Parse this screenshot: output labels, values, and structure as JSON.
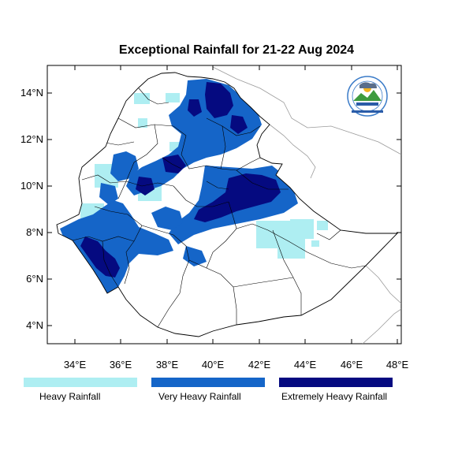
{
  "title": "Exceptional Rainfall for 21-22 Aug 2024",
  "axes": {
    "lat_ticks": [
      "4°N",
      "6°N",
      "8°N",
      "10°N",
      "12°N",
      "14°N"
    ],
    "lon_ticks": [
      "34°E",
      "36°E",
      "38°E",
      "40°E",
      "42°E",
      "44°E",
      "46°E",
      "48°E"
    ]
  },
  "legend": [
    {
      "label": "Heavy Rainfall",
      "color": "#aeeef2"
    },
    {
      "label": "Very Heavy Rainfall",
      "color": "#1565c8"
    },
    {
      "label": "Extremely Heavy Rainfall",
      "color": "#050a80"
    }
  ],
  "logo": {
    "icon": "ethiopian-meteorology-institute-logo"
  }
}
